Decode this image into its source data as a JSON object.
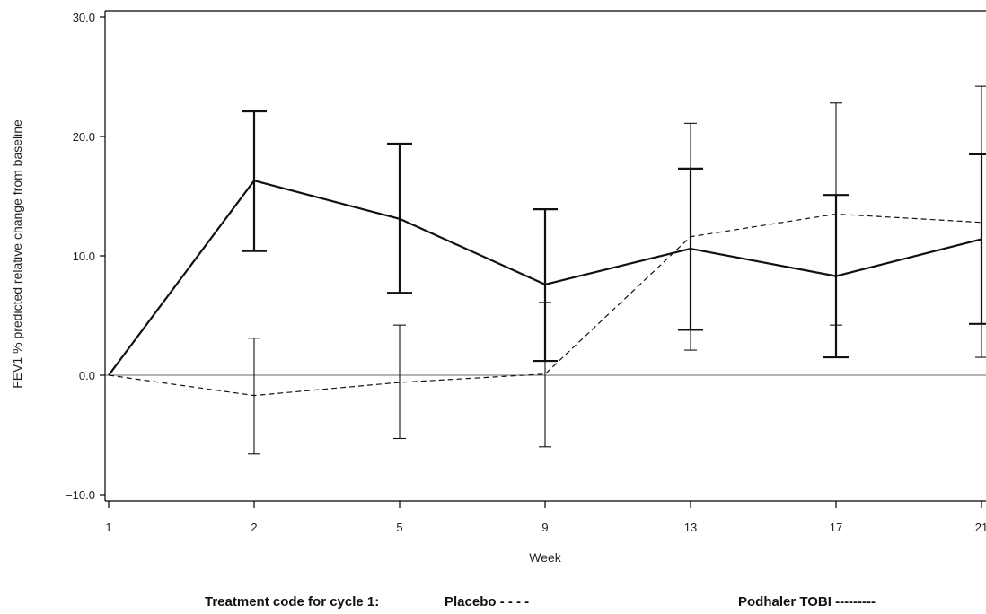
{
  "chart_data": {
    "type": "line",
    "title": "",
    "xlabel": "Week",
    "ylabel": "FEV1 % predicted relative change from baseline",
    "categories": [
      "1",
      "2",
      "5",
      "9",
      "13",
      "17",
      "21"
    ],
    "ylim": [
      -10,
      30
    ],
    "yticks": [
      "−10.0",
      "0.0",
      "10.0",
      "20.0",
      "30.0"
    ],
    "ytick_values": [
      -10,
      0,
      10,
      20,
      30
    ],
    "grid": false,
    "reference_line": 0,
    "series": [
      {
        "name": "Placebo",
        "style": "dashed",
        "values": [
          0,
          -1.7,
          -0.6,
          0.1,
          11.6,
          13.5,
          12.8
        ],
        "lower": [
          0,
          -6.6,
          -5.3,
          -6.0,
          2.1,
          4.2,
          1.5
        ],
        "upper": [
          0,
          3.1,
          4.2,
          6.1,
          21.1,
          22.8,
          24.2
        ]
      },
      {
        "name": "Podhaler TOBI",
        "style": "solid",
        "values": [
          0,
          16.3,
          13.1,
          7.6,
          10.6,
          8.3,
          11.4
        ],
        "lower": [
          0,
          10.4,
          6.9,
          1.2,
          3.8,
          1.5,
          4.3
        ],
        "upper": [
          0,
          22.1,
          19.4,
          13.9,
          17.3,
          15.1,
          18.5
        ]
      }
    ]
  },
  "legend": {
    "prefix": "Treatment code for cycle 1:",
    "placebo_label": "Placebo  - - - -",
    "tobi_label": "Podhaler TOBI  ---------"
  }
}
